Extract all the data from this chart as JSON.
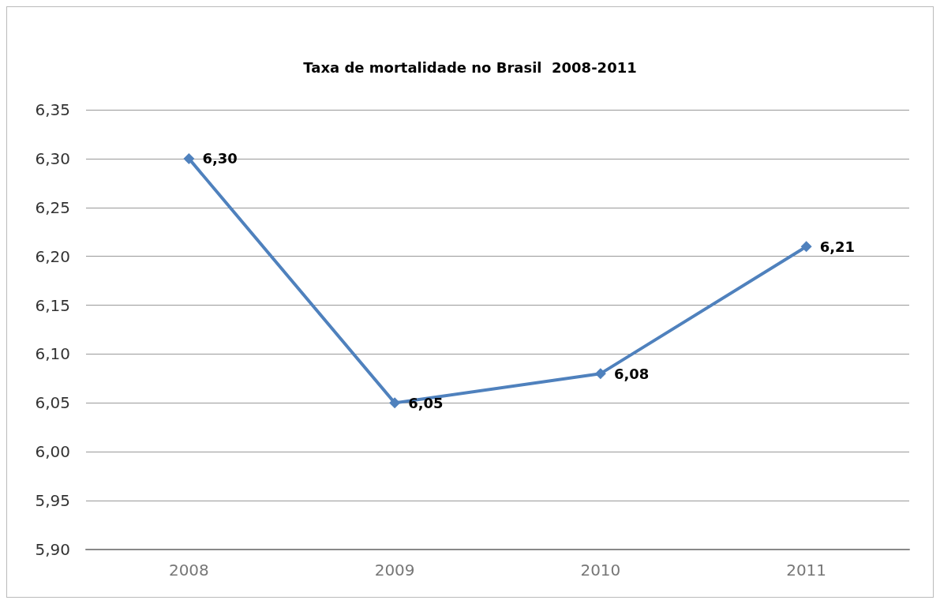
{
  "chart_data": {
    "type": "line",
    "title": "Taxa de mortalidade no Brasil  2008-2011",
    "categories": [
      "2008",
      "2009",
      "2010",
      "2011"
    ],
    "series": [
      {
        "color": "#4f81bd",
        "values": [
          6.3,
          6.05,
          6.08,
          6.21
        ],
        "value_labels": [
          "6,30",
          "6,05",
          "6,08",
          "6,21"
        ]
      }
    ],
    "ylim": [
      5.9,
      6.35
    ],
    "yticks": [
      {
        "value": 5.9,
        "label": "5,90"
      },
      {
        "value": 5.95,
        "label": "5,95"
      },
      {
        "value": 6.0,
        "label": "6,00"
      },
      {
        "value": 6.05,
        "label": "6,05"
      },
      {
        "value": 6.1,
        "label": "6,10"
      },
      {
        "value": 6.15,
        "label": "6,15"
      },
      {
        "value": 6.2,
        "label": "6,20"
      },
      {
        "value": 6.25,
        "label": "6,25"
      },
      {
        "value": 6.3,
        "label": "6,30"
      },
      {
        "value": 6.35,
        "label": "6,35"
      }
    ],
    "grid": "y",
    "marker": "diamond",
    "line_style": "solid"
  }
}
